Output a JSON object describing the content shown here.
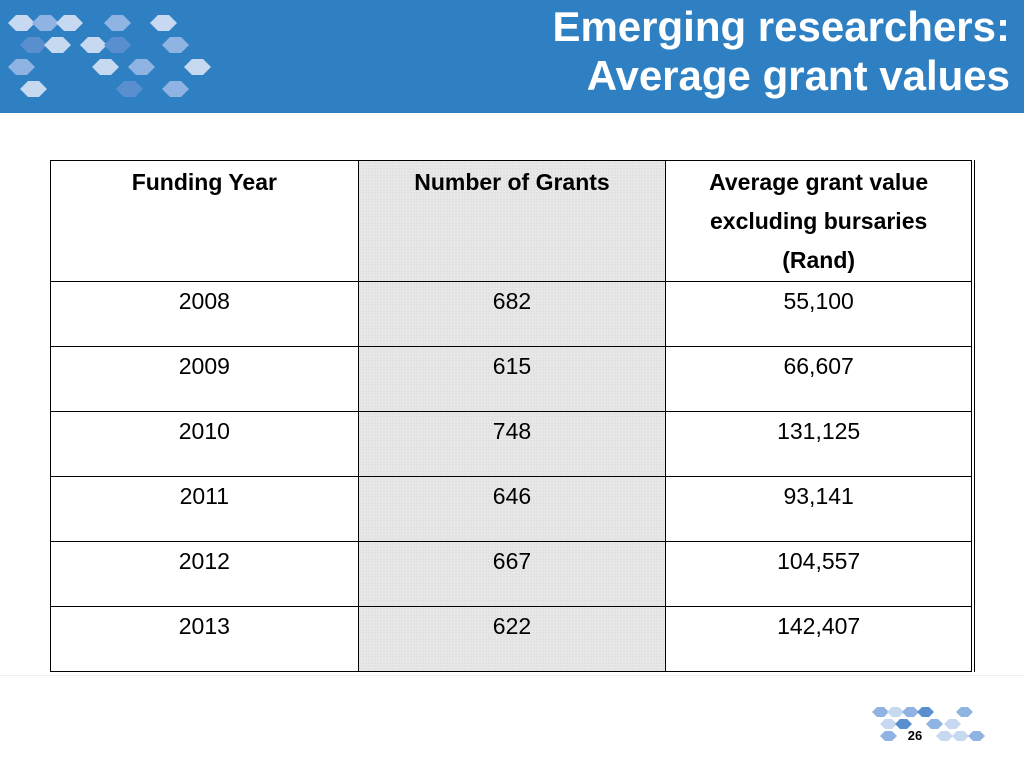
{
  "slide": {
    "title_line1": "Emerging researchers:",
    "title_line2": "Average grant values",
    "page_number": "26"
  },
  "table": {
    "headers": {
      "year": "Funding Year",
      "count": "Number of Grants",
      "value_line1": "Average grant value",
      "value_line2": "excluding bursaries",
      "value_line3": "(Rand)"
    },
    "rows": [
      {
        "year": "2008",
        "count": "682",
        "value": "55,100"
      },
      {
        "year": "2009",
        "count": "615",
        "value": "66,607"
      },
      {
        "year": "2010",
        "count": "748",
        "value": "131,125"
      },
      {
        "year": "2011",
        "count": "646",
        "value": "93,141"
      },
      {
        "year": "2012",
        "count": "667",
        "value": "104,557"
      },
      {
        "year": "2013",
        "count": "622",
        "value": "142,407"
      }
    ]
  },
  "colors": {
    "header_blue": "#2f80c3",
    "hex_light": "#c6d9f0",
    "hex_mid": "#8fb4e3",
    "hex_dark": "#5a8fcf"
  }
}
